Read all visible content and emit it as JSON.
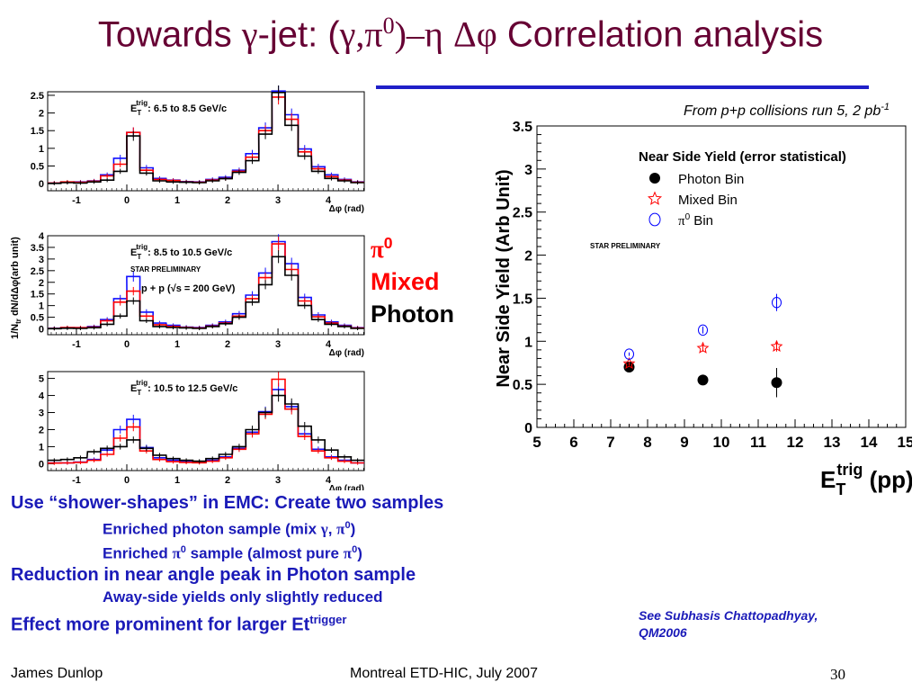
{
  "slide": {
    "title_pre": "Towards ",
    "title_gamma": "γ",
    "title_mid": "-jet: (",
    "title_gamma2": "γ",
    "title_comma": ",",
    "title_pi": "π",
    "title_pi_sup": "0",
    "title_close": ")",
    "title_dash": "–",
    "title_eta": "η",
    "title_space": " ",
    "title_dphi": "Δφ",
    "title_post": " Correlation analysis",
    "source_note_pre": "From p+p collisions run 5, 2 pb",
    "source_note_sup": "-1"
  },
  "legend_text": {
    "pi0": "π",
    "pi0_sup": "0",
    "mixed": "Mixed",
    "photon": "Photon"
  },
  "bullets": {
    "b1": "Use “shower-shapes” in EMC: Create two samples",
    "b1a_pre": "Enriched photon sample (mix ",
    "b1a_gamma": "γ",
    "b1a_comma": ", ",
    "b1a_pi": "π",
    "b1a_sup": "0",
    "b1a_close": ")",
    "b1b_pre": "Enriched ",
    "b1b_pi": "π",
    "b1b_sup": "0",
    "b1b_mid": " sample (almost pure ",
    "b1b_pi2": "π",
    "b1b_sup2": "0",
    "b1b_close": ")",
    "b2": "Reduction in near angle peak in Photon sample",
    "b2a": "Away-side yields only slightly reduced",
    "b3": "Effect more prominent for larger Et",
    "b3_sup": "trigger"
  },
  "reference": {
    "line1": "See Subhasis Chattopadhyay,",
    "line2": "QM2006"
  },
  "footer": {
    "left": "James Dunlop",
    "middle": "Montreal ETD-HIC, July 2007",
    "page": "30"
  },
  "colors": {
    "title": "#660033",
    "bullets": "#1a1ab8",
    "rule": "#2020c8",
    "pi0_series": "#1010ff",
    "mixed_series": "#ff0000",
    "photon_series": "#000000"
  },
  "chart_data": [
    {
      "type": "line",
      "subtype": "histogram",
      "panel": "top",
      "annotation": "E_T^trig: 6.5 to 8.5 GeV/c",
      "annotation_label": "E",
      "annotation_sub": "T",
      "annotation_sup": "trig",
      "annotation_text": ": 6.5 to 8.5 GeV/c",
      "xlabel": "Δφ (rad)",
      "ylabel": "",
      "xlim": [
        -1.5708,
        4.7124
      ],
      "ylim": [
        -0.2,
        2.6
      ],
      "yticks": [
        0,
        0.5,
        1,
        1.5,
        2,
        2.5
      ],
      "ytick_labels": [
        "0",
        "0.5",
        "1",
        "1.5",
        "2",
        "2.5"
      ],
      "xticks": [
        -1,
        0,
        1,
        2,
        3,
        4
      ],
      "xtick_labels": [
        "-1",
        "0",
        "1",
        "2",
        "3",
        "4"
      ],
      "x": [
        -1.44,
        -1.18,
        -0.92,
        -0.65,
        -0.39,
        -0.13,
        0.13,
        0.39,
        0.65,
        0.92,
        1.18,
        1.44,
        1.7,
        1.96,
        2.23,
        2.49,
        2.75,
        3.01,
        3.27,
        3.53,
        3.8,
        4.06,
        4.32,
        4.58
      ],
      "series": [
        {
          "name": "π0",
          "color": "#1010ff",
          "values": [
            0.02,
            0.04,
            0.05,
            0.08,
            0.25,
            0.72,
            1.45,
            0.45,
            0.15,
            0.1,
            0.06,
            0.05,
            0.12,
            0.18,
            0.38,
            0.85,
            1.58,
            2.62,
            1.95,
            0.98,
            0.48,
            0.25,
            0.12,
            0.05
          ]
        },
        {
          "name": "Mixed",
          "color": "#ff0000",
          "values": [
            0.02,
            0.05,
            0.04,
            0.07,
            0.22,
            0.55,
            1.45,
            0.38,
            0.12,
            0.09,
            0.05,
            0.04,
            0.1,
            0.15,
            0.35,
            0.75,
            1.5,
            2.45,
            1.82,
            0.9,
            0.42,
            0.2,
            0.1,
            0.04
          ]
        },
        {
          "name": "Photon",
          "color": "#000000",
          "values": [
            0.01,
            0.03,
            0.02,
            0.05,
            0.1,
            0.35,
            1.35,
            0.3,
            0.08,
            0.05,
            0.04,
            0.03,
            0.08,
            0.14,
            0.32,
            0.65,
            1.4,
            2.58,
            1.65,
            0.78,
            0.35,
            0.15,
            0.08,
            0.03
          ]
        }
      ]
    },
    {
      "type": "line",
      "subtype": "histogram",
      "panel": "middle",
      "annotation": "E_T^trig: 8.5 to 10.5 GeV/c",
      "annotation_label": "E",
      "annotation_sub": "T",
      "annotation_sup": "trig",
      "annotation_text": ": 8.5 to 10.5 GeV/c",
      "extra_text": [
        "STAR PRELIMINARY",
        "p + p (√s = 200 GeV)"
      ],
      "xlabel": "Δφ (rad)",
      "ylabel": "1/N_tr dN/dΔφ(arb unit)",
      "ylabel_parts": {
        "pre": "1/N",
        "sub": "tr",
        "post": " dN/dΔφ(arb unit)"
      },
      "xlim": [
        -1.5708,
        4.7124
      ],
      "ylim": [
        -0.25,
        4.0
      ],
      "yticks": [
        0,
        0.5,
        1,
        1.5,
        2,
        2.5,
        3,
        3.5,
        4
      ],
      "ytick_labels": [
        "0",
        "0.5",
        "1",
        "1.5",
        "2",
        "2.5",
        "3",
        "3.5",
        "4"
      ],
      "xticks": [
        -1,
        0,
        1,
        2,
        3,
        4
      ],
      "xtick_labels": [
        "-1",
        "0",
        "1",
        "2",
        "3",
        "4"
      ],
      "x": [
        -1.44,
        -1.18,
        -0.92,
        -0.65,
        -0.39,
        -0.13,
        0.13,
        0.39,
        0.65,
        0.92,
        1.18,
        1.44,
        1.7,
        1.96,
        2.23,
        2.49,
        2.75,
        3.01,
        3.27,
        3.53,
        3.8,
        4.06,
        4.32,
        4.58
      ],
      "series": [
        {
          "name": "π0",
          "color": "#1010ff",
          "values": [
            0.03,
            0.05,
            0.05,
            0.1,
            0.4,
            1.3,
            2.25,
            0.72,
            0.25,
            0.15,
            0.08,
            0.06,
            0.15,
            0.3,
            0.65,
            1.45,
            2.4,
            3.75,
            2.8,
            1.35,
            0.6,
            0.3,
            0.15,
            0.05
          ]
        },
        {
          "name": "Mixed",
          "color": "#ff0000",
          "values": [
            0.02,
            0.06,
            0.05,
            0.08,
            0.35,
            1.15,
            1.62,
            0.55,
            0.18,
            0.1,
            0.06,
            0.04,
            0.12,
            0.25,
            0.55,
            1.3,
            2.2,
            3.65,
            2.55,
            1.2,
            0.52,
            0.25,
            0.12,
            0.04
          ]
        },
        {
          "name": "Photon",
          "color": "#000000",
          "values": [
            0.01,
            0.03,
            0.02,
            0.05,
            0.2,
            0.55,
            1.2,
            0.35,
            0.1,
            0.06,
            0.04,
            0.02,
            0.1,
            0.22,
            0.5,
            1.15,
            1.9,
            3.1,
            2.3,
            1.0,
            0.4,
            0.2,
            0.1,
            0.02
          ]
        }
      ]
    },
    {
      "type": "line",
      "subtype": "histogram",
      "panel": "bottom",
      "annotation": "E_T^trig: 10.5 to 12.5 GeV/c",
      "annotation_label": "E",
      "annotation_sub": "T",
      "annotation_sup": "trig",
      "annotation_text": ": 10.5 to 12.5 GeV/c",
      "xlabel": "Δφ (rad)",
      "ylabel": "",
      "xlim": [
        -1.5708,
        4.7124
      ],
      "ylim": [
        -0.4,
        5.4
      ],
      "yticks": [
        0,
        1,
        2,
        3,
        4,
        5
      ],
      "ytick_labels": [
        "0",
        "1",
        "2",
        "3",
        "4",
        "5"
      ],
      "xticks": [
        -1,
        0,
        1,
        2,
        3,
        4
      ],
      "xtick_labels": [
        "-1",
        "0",
        "1",
        "2",
        "3",
        "4"
      ],
      "x": [
        -1.44,
        -1.18,
        -0.92,
        -0.65,
        -0.39,
        -0.13,
        0.13,
        0.39,
        0.65,
        0.92,
        1.18,
        1.44,
        1.7,
        1.96,
        2.23,
        2.49,
        2.75,
        3.01,
        3.27,
        3.53,
        3.8,
        4.06,
        4.32,
        4.58
      ],
      "series": [
        {
          "name": "π0",
          "color": "#1010ff",
          "values": [
            0.05,
            0.05,
            0.1,
            0.25,
            0.8,
            2.0,
            2.6,
            0.95,
            0.35,
            0.2,
            0.12,
            0.1,
            0.2,
            0.4,
            0.9,
            1.85,
            3.05,
            4.35,
            3.35,
            1.75,
            0.85,
            0.4,
            0.2,
            0.05
          ]
        },
        {
          "name": "Mixed",
          "color": "#ff0000",
          "values": [
            0.04,
            0.05,
            0.08,
            0.2,
            0.55,
            1.5,
            2.15,
            0.75,
            0.25,
            0.12,
            0.08,
            0.06,
            0.15,
            0.35,
            0.85,
            1.75,
            2.9,
            4.95,
            3.2,
            1.6,
            0.75,
            0.35,
            0.15,
            0.05
          ]
        },
        {
          "name": "Photon",
          "color": "#000000",
          "values": [
            0.2,
            0.25,
            0.35,
            0.7,
            0.9,
            1.0,
            1.4,
            0.9,
            0.5,
            0.3,
            0.2,
            0.15,
            0.3,
            0.55,
            1.0,
            2.0,
            3.0,
            4.0,
            3.5,
            2.2,
            1.4,
            0.8,
            0.4,
            0.2
          ]
        }
      ]
    },
    {
      "type": "scatter",
      "title": "Near Side Yield (error statistical)",
      "xlabel_pre": "E",
      "xlabel_sub": "T",
      "xlabel_sup": "trig",
      "xlabel_post": " (pp)",
      "ylabel": "Near Side Yield (Arb Unit)",
      "note": "STAR PRELIMINARY",
      "xlim": [
        5,
        15
      ],
      "ylim": [
        0,
        3.5
      ],
      "xticks": [
        5,
        6,
        7,
        8,
        9,
        10,
        11,
        12,
        13,
        14,
        15
      ],
      "xtick_labels": [
        "5",
        "6",
        "7",
        "8",
        "9",
        "10",
        "11",
        "12",
        "13",
        "14",
        "15"
      ],
      "yticks": [
        0,
        0.5,
        1,
        1.5,
        2,
        2.5,
        3,
        3.5
      ],
      "ytick_labels": [
        "0",
        "0.5",
        "1",
        "1.5",
        "2",
        "2.5",
        "3",
        "3.5"
      ],
      "legend": [
        {
          "name": "Photon Bin",
          "marker": "filled-circle",
          "color": "#000000"
        },
        {
          "name": "Mixed Bin",
          "marker": "open-star",
          "color": "#ff0000"
        },
        {
          "name": "π0 Bin",
          "name_pre": "π",
          "name_sup": "0",
          "name_post": " Bin",
          "marker": "open-circle",
          "color": "#0000ff"
        }
      ],
      "series": [
        {
          "name": "Photon Bin",
          "marker": "filled-circle",
          "color": "#000000",
          "x": [
            7.5,
            9.5,
            11.5
          ],
          "y": [
            0.7,
            0.55,
            0.52
          ],
          "err": [
            0.03,
            0.05,
            0.17
          ]
        },
        {
          "name": "Mixed Bin",
          "marker": "open-star",
          "color": "#ff0000",
          "x": [
            7.5,
            9.5,
            11.5
          ],
          "y": [
            0.74,
            0.92,
            0.94
          ],
          "err": [
            0.02,
            0.04,
            0.06
          ]
        },
        {
          "name": "π0 Bin",
          "marker": "open-circle",
          "color": "#0000ff",
          "x": [
            7.5,
            9.5,
            11.5
          ],
          "y": [
            0.85,
            1.13,
            1.45
          ],
          "err": [
            0.02,
            0.04,
            0.1
          ]
        }
      ]
    }
  ]
}
